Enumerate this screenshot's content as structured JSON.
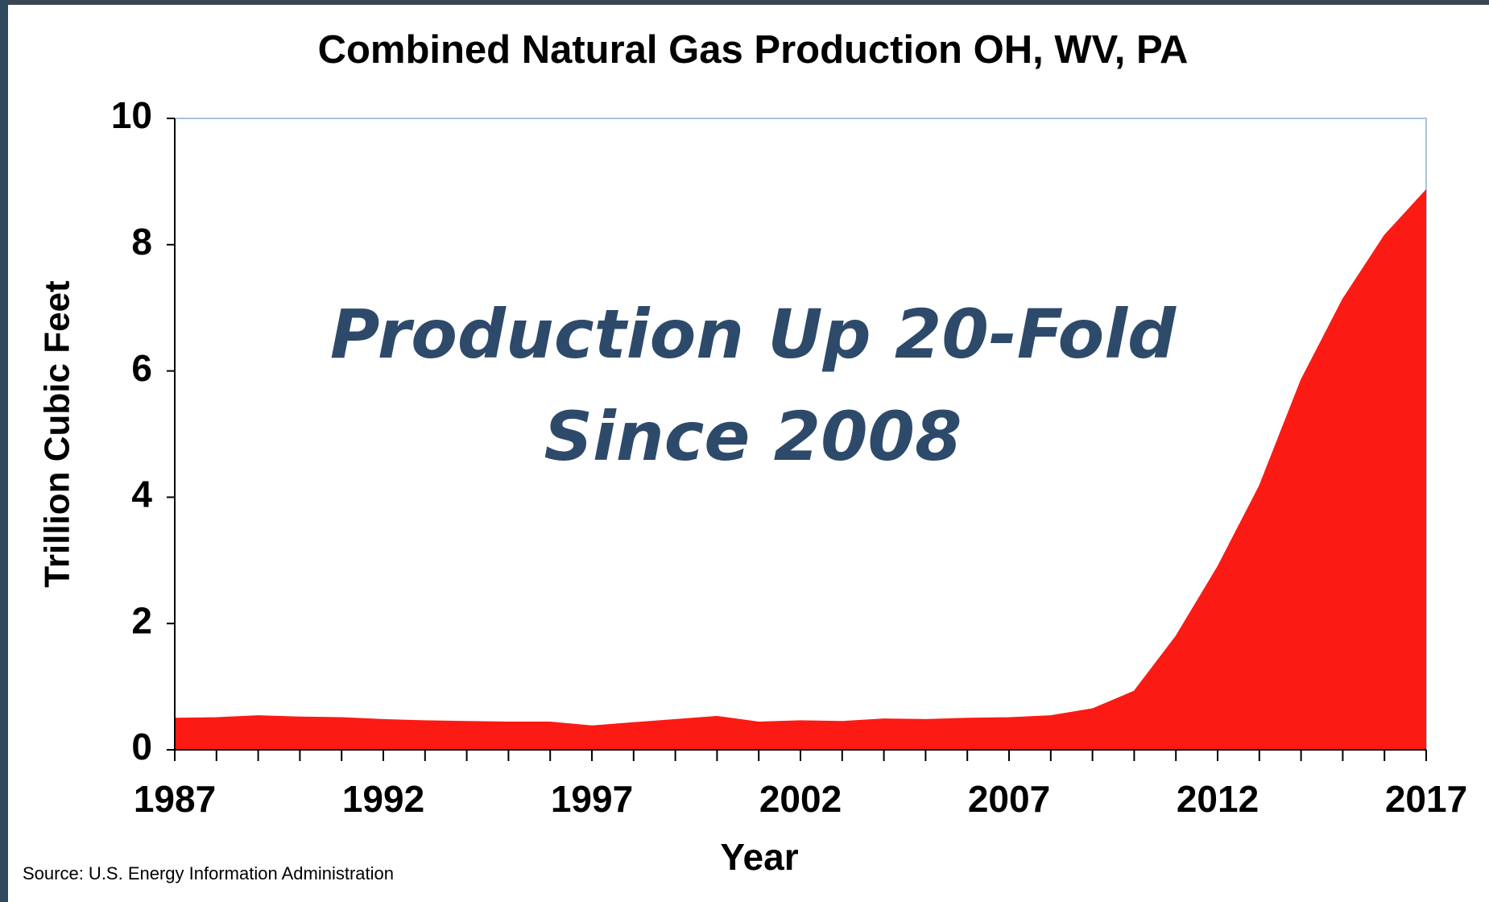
{
  "chart_data": {
    "type": "area",
    "title": "Combined Natural Gas Production OH, WV, PA",
    "x_label": "Year",
    "y_label": "Trillion Cubic Feet",
    "annotation": [
      "Production Up 20-Fold",
      "Since 2008"
    ],
    "source": "Source: U.S. Energy Information Administration",
    "x": [
      1987,
      1988,
      1989,
      1990,
      1991,
      1992,
      1993,
      1994,
      1995,
      1996,
      1997,
      1998,
      1999,
      2000,
      2001,
      2002,
      2003,
      2004,
      2005,
      2006,
      2007,
      2008,
      2009,
      2010,
      2011,
      2012,
      2013,
      2014,
      2015,
      2016,
      2017
    ],
    "values": [
      0.5,
      0.51,
      0.54,
      0.52,
      0.51,
      0.48,
      0.46,
      0.45,
      0.44,
      0.44,
      0.38,
      0.43,
      0.48,
      0.53,
      0.44,
      0.46,
      0.45,
      0.49,
      0.48,
      0.5,
      0.51,
      0.54,
      0.65,
      0.93,
      1.8,
      2.9,
      4.18,
      5.86,
      7.14,
      8.15,
      8.87
    ],
    "color": "#fb1b14",
    "xlim": [
      1987,
      2017
    ],
    "xticks": [
      1987,
      1992,
      1997,
      2002,
      2007,
      2012,
      2017
    ],
    "ylim": [
      0,
      10
    ],
    "yticks": [
      0,
      2,
      4,
      6,
      8,
      10
    ]
  }
}
